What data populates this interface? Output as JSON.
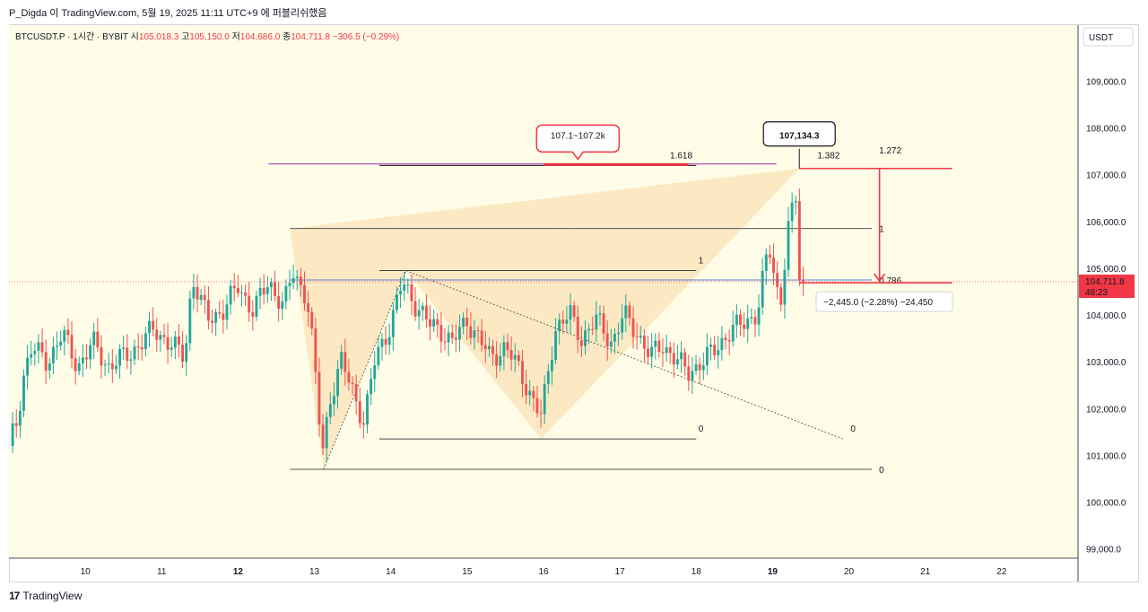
{
  "header_note": "P_Digda 이 TradingView.com, 5월 19, 2025 11:11 UTC+9 에 퍼블리쉬했음",
  "symbol_line": {
    "symbol": "BTCUSDT.P · 1시간 · BYBIT",
    "open_label": "시",
    "open": "105,018.3",
    "high_label": "고",
    "high": "105,150.0",
    "low_label": "저",
    "low": "104,686.0",
    "close_label": "종",
    "close": "104,711.8",
    "change": "−306.5 (−0.29%)"
  },
  "currency": "USDT",
  "footer": "TradingView",
  "colors": {
    "up": "#26a69a",
    "down": "#ef5350",
    "background": "#fffde7",
    "pattern": "#f9d9a6",
    "accent_red": "#f23645",
    "fib_blue": "#5b7fd6",
    "fib_purple": "#9c27b0"
  },
  "chart_data": {
    "type": "candlestick",
    "symbol": "BTCUSDT.P",
    "interval": "1시간",
    "exchange": "BYBIT",
    "ylim": [
      98800,
      110200
    ],
    "y_ticks": [
      99000,
      100000,
      101000,
      102000,
      103000,
      104000,
      105000,
      106000,
      107000,
      108000,
      109000
    ],
    "y_tick_labels": [
      "99,000.0",
      "100,000.0",
      "101,000.0",
      "102,000.0",
      "103,000.0",
      "104,000.0",
      "105,000.0",
      "106,000.0",
      "107,000.0",
      "108,000.0",
      "109,000.0"
    ],
    "x_day_range": [
      9.0,
      23.0
    ],
    "x_ticks": [
      10,
      11,
      12,
      13,
      14,
      15,
      16,
      17,
      18,
      19,
      20,
      21,
      22
    ],
    "x_tick_labels": [
      "10",
      "11",
      "12",
      "13",
      "14",
      "15",
      "16",
      "17",
      "18",
      "19",
      "20",
      "21",
      "22"
    ],
    "last_price_label": "104,711.8",
    "countdown_label": "48:23",
    "last_price": 104711.8,
    "price_path": [
      [
        9.0,
        101200
      ],
      [
        9.1,
        101700
      ],
      [
        9.2,
        102800
      ],
      [
        9.3,
        103300
      ],
      [
        9.5,
        103000
      ],
      [
        9.7,
        103600
      ],
      [
        9.9,
        102900
      ],
      [
        10.1,
        103400
      ],
      [
        10.3,
        102900
      ],
      [
        10.6,
        103200
      ],
      [
        10.9,
        103700
      ],
      [
        11.1,
        103400
      ],
      [
        11.3,
        103100
      ],
      [
        11.4,
        104800
      ],
      [
        11.6,
        103900
      ],
      [
        11.8,
        104100
      ],
      [
        12.0,
        104600
      ],
      [
        12.2,
        104100
      ],
      [
        12.4,
        104700
      ],
      [
        12.6,
        104200
      ],
      [
        12.72,
        104900
      ],
      [
        12.9,
        104400
      ],
      [
        12.95,
        103800
      ],
      [
        13.05,
        102000
      ],
      [
        13.1,
        101000
      ],
      [
        13.2,
        102200
      ],
      [
        13.35,
        103000
      ],
      [
        13.5,
        102400
      ],
      [
        13.65,
        101700
      ],
      [
        13.8,
        103100
      ],
      [
        14.0,
        103800
      ],
      [
        14.15,
        104700
      ],
      [
        14.3,
        104300
      ],
      [
        14.5,
        103800
      ],
      [
        14.65,
        103700
      ],
      [
        14.8,
        103400
      ],
      [
        15.0,
        103900
      ],
      [
        15.15,
        103500
      ],
      [
        15.3,
        103100
      ],
      [
        15.5,
        103300
      ],
      [
        15.7,
        102800
      ],
      [
        15.85,
        102200
      ],
      [
        15.97,
        101800
      ],
      [
        16.05,
        102700
      ],
      [
        16.15,
        103700
      ],
      [
        16.35,
        104000
      ],
      [
        16.5,
        103500
      ],
      [
        16.7,
        103900
      ],
      [
        16.9,
        103400
      ],
      [
        17.05,
        104000
      ],
      [
        17.2,
        103700
      ],
      [
        17.4,
        103100
      ],
      [
        17.55,
        103400
      ],
      [
        17.75,
        103000
      ],
      [
        17.9,
        102800
      ],
      [
        18.1,
        103000
      ],
      [
        18.3,
        103400
      ],
      [
        18.5,
        103700
      ],
      [
        18.65,
        103900
      ],
      [
        18.8,
        104000
      ],
      [
        18.95,
        105500
      ],
      [
        19.1,
        104200
      ],
      [
        19.2,
        105800
      ],
      [
        19.32,
        106600
      ],
      [
        19.34,
        104900
      ],
      [
        19.4,
        104711.8
      ]
    ],
    "candle_count": 215,
    "harmonic_pattern_points": [
      [
        12.68,
        105850
      ],
      [
        13.12,
        100700
      ],
      [
        14.2,
        104950
      ],
      [
        15.97,
        101350
      ],
      [
        19.35,
        107134.3
      ]
    ],
    "fib_retracement_1": {
      "x": [
        12.68,
        20.3
      ],
      "levels": [
        {
          "label": "1",
          "price": 105850
        },
        {
          "label": "0.786",
          "price": 104750
        },
        {
          "label": "0",
          "price": 100700
        }
      ],
      "extension": {
        "label": "1.618",
        "price": 107200
      }
    },
    "fib_retracement_2": {
      "x": [
        13.85,
        18.0
      ],
      "levels": [
        {
          "label": "1",
          "price": 104950
        },
        {
          "label": "0",
          "price": 101350
        }
      ],
      "extension": {
        "label": "1.382",
        "price": 107200
      }
    },
    "fib_level_1272": {
      "label": "1.272",
      "price": 107230,
      "x": [
        12.4,
        19.05
      ]
    },
    "trend_lines": [
      {
        "from": [
          13.12,
          100700
        ],
        "to": [
          14.2,
          104950
        ]
      },
      {
        "from": [
          14.2,
          104950
        ],
        "to": [
          19.92,
          101350
        ]
      }
    ],
    "fib_label_0_outer": "0",
    "callout_target": {
      "label": "107.1~107.2k",
      "price": 107200,
      "x": 16.45
    },
    "callout_high": {
      "label": "107,134.3",
      "price": 107134.3,
      "x": 19.35
    },
    "measure": {
      "from_price": 107134.3,
      "to_price": 104689.3,
      "label": "−2,445.0 (−2.28%) −24,450",
      "x": [
        19.35,
        21.35
      ]
    }
  }
}
